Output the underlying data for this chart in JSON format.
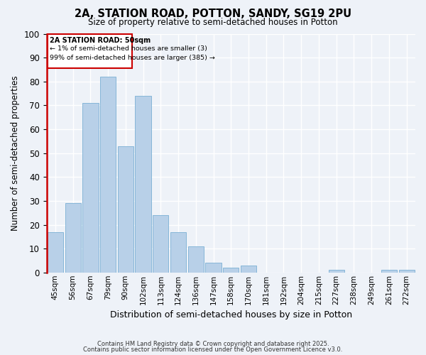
{
  "title1": "2A, STATION ROAD, POTTON, SANDY, SG19 2PU",
  "title2": "Size of property relative to semi-detached houses in Potton",
  "xlabel": "Distribution of semi-detached houses by size in Potton",
  "ylabel": "Number of semi-detached properties",
  "categories": [
    "45sqm",
    "56sqm",
    "67sqm",
    "79sqm",
    "90sqm",
    "102sqm",
    "113sqm",
    "124sqm",
    "136sqm",
    "147sqm",
    "158sqm",
    "170sqm",
    "181sqm",
    "192sqm",
    "204sqm",
    "215sqm",
    "227sqm",
    "238sqm",
    "249sqm",
    "261sqm",
    "272sqm"
  ],
  "values": [
    17,
    29,
    71,
    82,
    53,
    74,
    24,
    17,
    11,
    4,
    2,
    3,
    0,
    0,
    0,
    0,
    1,
    0,
    0,
    1,
    1
  ],
  "bar_color": "#b8d0e8",
  "bar_edge_color": "#7aafd4",
  "highlight_color": "#cc0000",
  "annotation_title": "2A STATION ROAD: 50sqm",
  "annotation_line1": "← 1% of semi-detached houses are smaller (3)",
  "annotation_line2": "99% of semi-detached houses are larger (385) →",
  "ylim": [
    0,
    100
  ],
  "yticks": [
    0,
    10,
    20,
    30,
    40,
    50,
    60,
    70,
    80,
    90,
    100
  ],
  "footnote1": "Contains HM Land Registry data © Crown copyright and database right 2025.",
  "footnote2": "Contains public sector information licensed under the Open Government Licence v3.0.",
  "bg_color": "#eef2f8",
  "grid_color": "#ffffff"
}
